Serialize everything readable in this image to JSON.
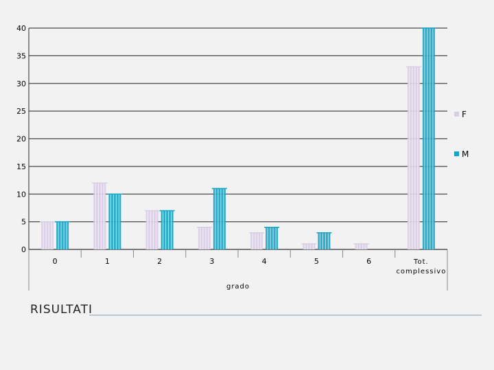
{
  "slide": {
    "title": "RISULTATI"
  },
  "colors": {
    "F": "#d9cde6",
    "M": "#17a3c4",
    "grid": "#4a4a4a",
    "title_rule": "#b8c8d4"
  },
  "chart_data": {
    "type": "bar",
    "title": "",
    "xlabel": "grado",
    "ylabel": "",
    "ylim": [
      0,
      40
    ],
    "yticks": [
      "0",
      "5",
      "10",
      "15",
      "20",
      "25",
      "30",
      "35",
      "40"
    ],
    "grid": true,
    "legend_position": "right",
    "categories": [
      "0",
      "1",
      "2",
      "3",
      "4",
      "5",
      "6",
      "Tot. complessivo"
    ],
    "series": [
      {
        "name": "F",
        "values": [
          5,
          12,
          7,
          4,
          3,
          1,
          1,
          33
        ]
      },
      {
        "name": "M",
        "values": [
          5,
          10,
          7,
          11,
          4,
          3,
          0,
          40
        ]
      }
    ]
  }
}
